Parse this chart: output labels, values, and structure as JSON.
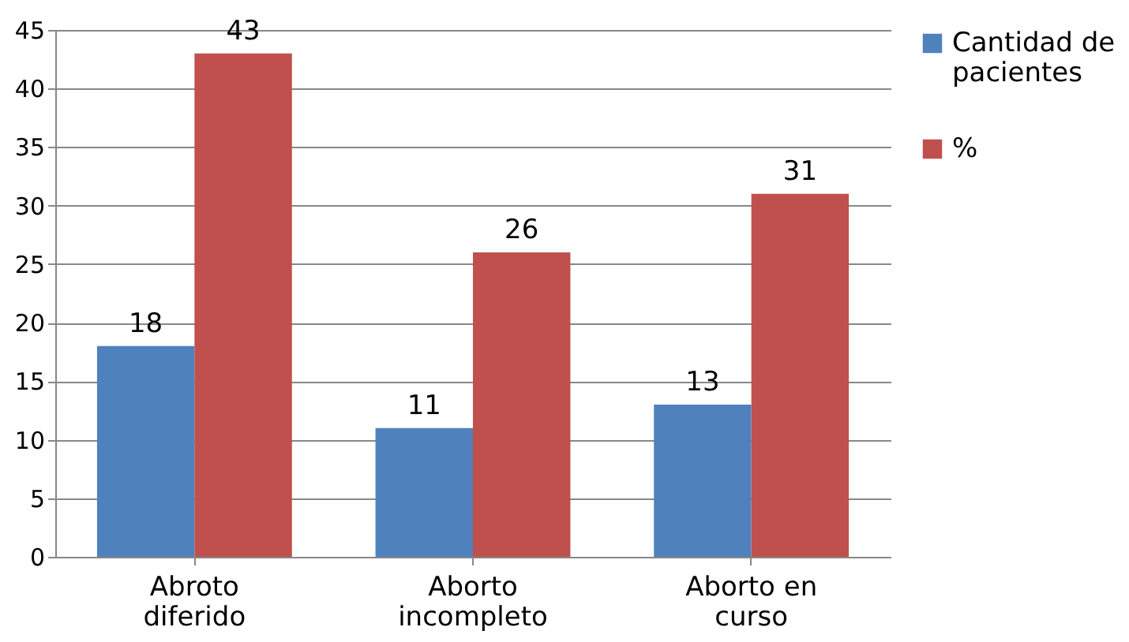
{
  "chart_data": {
    "type": "bar",
    "categories": [
      "Abroto diferido",
      "Aborto incompleto",
      "Aborto en curso"
    ],
    "series": [
      {
        "name": "Cantidad de pacientes",
        "color": "#4f81bd",
        "values": [
          18,
          11,
          13
        ]
      },
      {
        "name": "%",
        "color": "#c0504d",
        "values": [
          43,
          26,
          31
        ]
      }
    ],
    "ylim": [
      0,
      45
    ],
    "yticks": [
      0,
      5,
      10,
      15,
      20,
      25,
      30,
      35,
      40,
      45
    ],
    "grid": "y",
    "legend": "right",
    "data_labels": true
  }
}
